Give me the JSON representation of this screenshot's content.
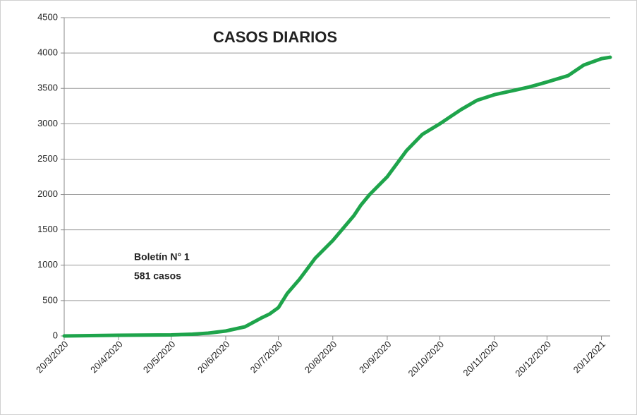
{
  "chart_data": {
    "type": "line",
    "title": "CASOS DIARIOS",
    "annotations": [
      "Boletín N° 1",
      "581 casos"
    ],
    "x": [
      "20/3/2020",
      "20/4/2020",
      "20/5/2020",
      "1/6/2020",
      "10/6/2020",
      "20/6/2020",
      "1/7/2020",
      "10/7/2020",
      "15/7/2020",
      "20/7/2020",
      "25/7/2020",
      "1/8/2020",
      "10/8/2020",
      "20/8/2020",
      "1/9/2020",
      "5/9/2020",
      "10/9/2020",
      "20/9/2020",
      "1/10/2020",
      "10/10/2020",
      "20/10/2020",
      "1/11/2020",
      "10/11/2020",
      "20/11/2020",
      "1/12/2020",
      "10/12/2020",
      "20/12/2020",
      "1/1/2021",
      "10/1/2021",
      "20/1/2021",
      "25/1/2021"
    ],
    "series": [
      {
        "name": "Casos",
        "color": "#1ea44b",
        "values": [
          0,
          10,
          15,
          25,
          40,
          70,
          130,
          250,
          310,
          400,
          600,
          800,
          1100,
          1350,
          1700,
          1850,
          2000,
          2250,
          2620,
          2850,
          3000,
          3200,
          3330,
          3410,
          3470,
          3520,
          3590,
          3680,
          3830,
          3920,
          3940
        ]
      }
    ],
    "xlim": [
      "20/3/2020",
      "25/1/2021"
    ],
    "xticks": [
      "20/3/2020",
      "20/4/2020",
      "20/5/2020",
      "20/6/2020",
      "20/7/2020",
      "20/8/2020",
      "20/9/2020",
      "20/10/2020",
      "20/11/2020",
      "20/12/2020",
      "20/1/2021"
    ],
    "ylim": [
      0,
      4500
    ],
    "yticks": [
      0,
      500,
      1000,
      1500,
      2000,
      2500,
      3000,
      3500,
      4000,
      4500
    ],
    "grid": true
  }
}
